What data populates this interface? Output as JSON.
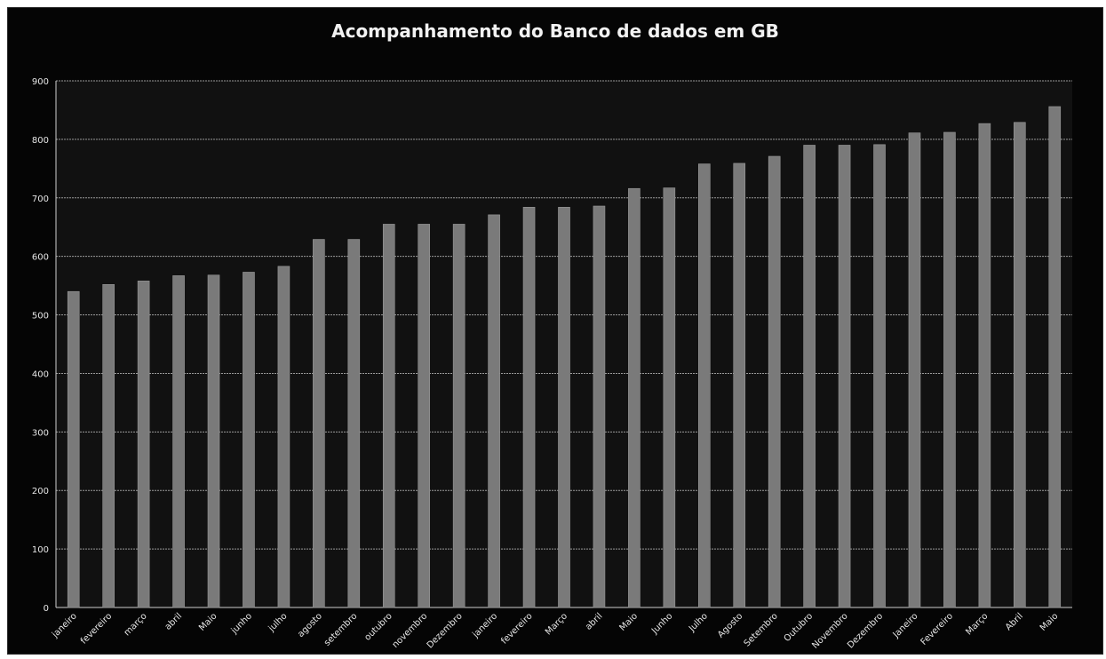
{
  "chart_data": {
    "type": "bar",
    "title": "Acompanhamento do Banco de dados em GB",
    "xlabel": "",
    "ylabel": "",
    "ylim": [
      0,
      900
    ],
    "yticks": [
      0,
      100,
      200,
      300,
      400,
      500,
      600,
      700,
      800,
      900
    ],
    "grid": true,
    "legend": "none",
    "categories": [
      "janeiro",
      "fevereiro",
      "março",
      "abril",
      "Maio",
      "junho",
      "julho",
      "agosto",
      "setembro",
      "outubro",
      "novembro",
      "Dezembro",
      "janeiro",
      "fevereiro",
      "Março",
      "abril",
      "Maio",
      "Junho",
      "Julho",
      "Agosto",
      "Setembro",
      "Outubro",
      "Novembro",
      "Dezembro",
      "Janeiro",
      "Fevereiro",
      "Março",
      "Abril",
      "Maio"
    ],
    "values": [
      540,
      552,
      558,
      567,
      568,
      573,
      583,
      629,
      629,
      655,
      655,
      655,
      671,
      684,
      684,
      686,
      716,
      717,
      758,
      759,
      771,
      790,
      790,
      791,
      811,
      812,
      827,
      829,
      856
    ],
    "colors": {
      "background": "#050505",
      "bar": "#7a7a7a",
      "grid": "#9a9a9a",
      "text": "#e6e6e6"
    }
  }
}
